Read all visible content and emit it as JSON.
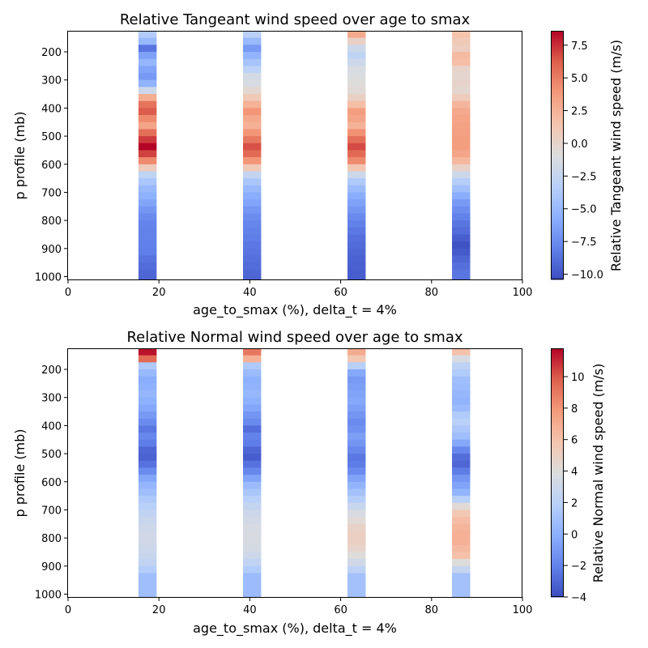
{
  "chart_data": [
    {
      "type": "heatmap",
      "title": "Relative Tangeant wind speed over age to smax",
      "xlabel": "age_to_smax (%), delta_t = 4%",
      "ylabel": "p profile (mb)",
      "xlim": [
        0,
        100
      ],
      "ylim": [
        1010,
        125
      ],
      "y_inverted": true,
      "x_ticks": [
        0,
        20,
        40,
        60,
        80,
        100
      ],
      "y_ticks": [
        200,
        300,
        400,
        500,
        600,
        700,
        800,
        900,
        1000
      ],
      "colorbar": {
        "label": "Relative Tangeant wind speed (m/s)",
        "range": [
          -10.4,
          8.6
        ],
        "ticks": [
          -10.0,
          -7.5,
          -5.0,
          -2.5,
          0.0,
          2.5,
          5.0,
          7.5
        ],
        "tick_labels": [
          "−10.0",
          "−7.5",
          "−5.0",
          "−2.5",
          "0.0",
          "2.5",
          "5.0",
          "7.5"
        ]
      },
      "grid": false,
      "colormap": "coolwarm",
      "pressure_levels": [
        125,
        150,
        175,
        200,
        225,
        250,
        275,
        300,
        325,
        350,
        375,
        400,
        425,
        450,
        475,
        500,
        525,
        550,
        575,
        600,
        625,
        650,
        675,
        700,
        725,
        750,
        775,
        800,
        825,
        850,
        875,
        900,
        925,
        950,
        975,
        1000,
        1010
      ],
      "columns": [
        {
          "x_range": [
            15.5,
            19.5
          ],
          "values": [
            -3.6,
            -5.0,
            -8.6,
            -6.5,
            -5.2,
            -6.2,
            -6.8,
            -5.4,
            -2.0,
            2.8,
            5.4,
            6.3,
            4.5,
            3.3,
            5.6,
            7.2,
            8.6,
            7.0,
            4.5,
            0.8,
            -2.8,
            -4.0,
            -5.0,
            -5.6,
            -6.2,
            -7.0,
            -7.6,
            -7.9,
            -8.0,
            -8.0,
            -8.1,
            -8.2,
            -8.7,
            -9.0,
            -9.2,
            -9.3
          ]
        },
        {
          "x_range": [
            38.5,
            42.5
          ],
          "values": [
            -3.2,
            -5.0,
            -6.8,
            -5.4,
            -4.2,
            -3.0,
            -1.5,
            -1.2,
            -0.3,
            1.0,
            2.5,
            4.0,
            3.0,
            2.6,
            4.0,
            5.2,
            6.6,
            5.8,
            4.0,
            1.0,
            -2.5,
            -4.0,
            -5.0,
            -5.8,
            -6.3,
            -7.0,
            -7.5,
            -7.8,
            -8.0,
            -8.2,
            -8.4,
            -8.6,
            -8.8,
            -9.0,
            -9.2,
            -9.3
          ]
        },
        {
          "x_range": [
            61.5,
            65.5
          ],
          "values": [
            3.0,
            0.3,
            -2.0,
            -2.8,
            -2.0,
            -1.3,
            -1.0,
            -0.8,
            -0.5,
            0.3,
            1.8,
            3.6,
            3.3,
            2.5,
            4.2,
            5.6,
            6.8,
            5.8,
            4.5,
            1.3,
            -2.0,
            -3.8,
            -4.8,
            -5.8,
            -6.4,
            -7.0,
            -7.6,
            -8.0,
            -8.4,
            -8.8,
            -9.0,
            -9.2,
            -9.4,
            -9.5,
            -9.6,
            -9.6
          ]
        },
        {
          "x_range": [
            84.5,
            88.5
          ],
          "values": [
            1.5,
            1.0,
            0.6,
            2.0,
            1.8,
            0.0,
            -0.2,
            0.1,
            -0.2,
            0.8,
            2.3,
            3.0,
            3.3,
            3.4,
            3.5,
            3.6,
            3.6,
            3.2,
            2.2,
            0.2,
            -2.0,
            -3.5,
            -4.5,
            -5.8,
            -6.8,
            -7.4,
            -8.0,
            -8.6,
            -9.0,
            -9.6,
            -10.1,
            -9.8,
            -9.2,
            -8.8,
            -8.6,
            -8.6
          ]
        }
      ]
    },
    {
      "type": "heatmap",
      "title": "Relative Normal wind speed over age to smax",
      "xlabel": "age_to_smax (%), delta_t = 4%",
      "ylabel": "p profile (mb)",
      "xlim": [
        0,
        100
      ],
      "ylim": [
        1010,
        125
      ],
      "y_inverted": true,
      "x_ticks": [
        0,
        20,
        40,
        60,
        80,
        100
      ],
      "y_ticks": [
        200,
        300,
        400,
        500,
        600,
        700,
        800,
        900,
        1000
      ],
      "colorbar": {
        "label": "Relative Normal wind speed (m/s)",
        "range": [
          -4.0,
          11.8
        ],
        "ticks": [
          -4,
          -2,
          0,
          2,
          4,
          6,
          8,
          10
        ],
        "tick_labels": [
          "−4",
          "−2",
          "0",
          "2",
          "4",
          "6",
          "8",
          "10"
        ]
      },
      "grid": false,
      "colormap": "coolwarm",
      "pressure_levels": [
        125,
        150,
        175,
        200,
        225,
        250,
        275,
        300,
        325,
        350,
        375,
        400,
        425,
        450,
        475,
        500,
        525,
        550,
        575,
        600,
        625,
        650,
        675,
        700,
        725,
        750,
        775,
        800,
        825,
        850,
        875,
        900,
        925,
        950,
        975,
        1000,
        1010
      ],
      "columns": [
        {
          "x_range": [
            15.5,
            19.5
          ],
          "values": [
            11.5,
            9.5,
            1.5,
            0.5,
            -0.2,
            0.0,
            0.3,
            0.0,
            -0.4,
            -1.0,
            -1.6,
            -2.4,
            -1.8,
            -2.2,
            -3.0,
            -3.2,
            -2.6,
            -1.6,
            -0.5,
            0.3,
            0.8,
            1.5,
            2.0,
            2.4,
            2.8,
            3.0,
            3.2,
            3.2,
            3.0,
            2.8,
            2.4,
            1.8,
            0.8,
            0.8,
            0.8,
            0.8
          ]
        },
        {
          "x_range": [
            38.5,
            42.5
          ],
          "values": [
            9.0,
            6.8,
            1.5,
            0.6,
            0.0,
            0.2,
            0.4,
            0.0,
            -0.5,
            -1.2,
            -1.7,
            -2.8,
            -2.0,
            -2.2,
            -3.0,
            -3.4,
            -2.6,
            -1.8,
            -0.6,
            0.6,
            1.3,
            2.0,
            2.6,
            3.0,
            3.3,
            3.5,
            3.6,
            3.6,
            3.4,
            3.0,
            2.4,
            1.6,
            0.6,
            0.6,
            0.6,
            0.6
          ]
        },
        {
          "x_range": [
            61.5,
            65.5
          ],
          "values": [
            7.0,
            5.6,
            2.0,
            -0.4,
            -1.0,
            -0.8,
            -0.6,
            -0.4,
            -0.8,
            -1.2,
            -1.6,
            -1.4,
            -0.8,
            -1.2,
            -1.8,
            -2.4,
            -2.2,
            -1.6,
            -0.6,
            0.2,
            1.0,
            1.8,
            2.8,
            3.6,
            4.2,
            4.8,
            5.0,
            5.0,
            4.6,
            4.0,
            3.2,
            2.2,
            1.0,
            1.0,
            1.0,
            1.0
          ]
        },
        {
          "x_range": [
            84.5,
            88.5
          ],
          "values": [
            6.0,
            3.6,
            2.2,
            1.6,
            0.8,
            0.6,
            0.4,
            0.2,
            0.6,
            1.6,
            2.0,
            1.4,
            0.8,
            -0.4,
            -1.8,
            -2.8,
            -3.0,
            -2.2,
            -1.2,
            -0.6,
            0.2,
            2.0,
            4.2,
            5.6,
            6.2,
            6.6,
            6.8,
            6.8,
            6.4,
            6.0,
            4.0,
            2.6,
            1.0,
            1.0,
            1.0,
            1.0
          ]
        }
      ]
    }
  ]
}
